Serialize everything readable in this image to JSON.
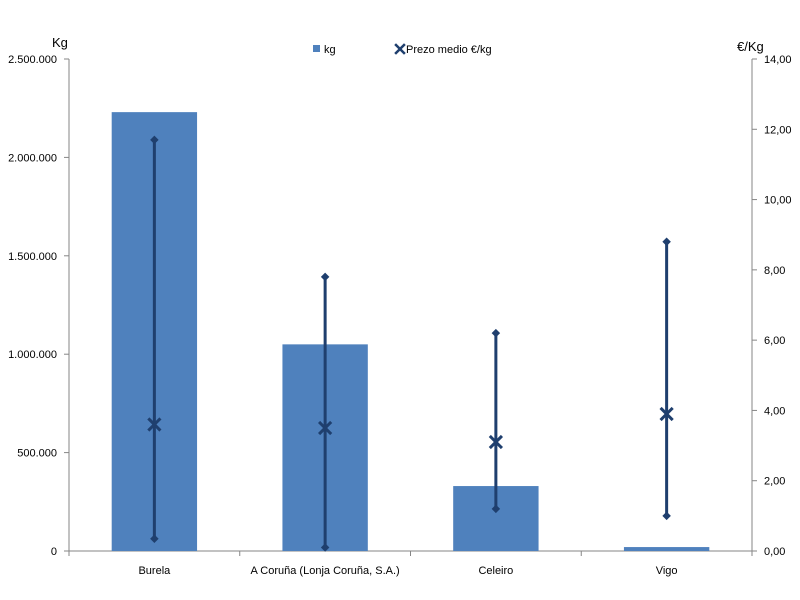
{
  "chart_data": {
    "type": "bar",
    "categories": [
      "Burela",
      "A Coruña (Lonja Coruña, S.A.)",
      "Celeiro",
      "Vigo"
    ],
    "y_left_label": "Kg",
    "y_right_label": "€/Kg",
    "y_left_ticks": [
      "0",
      "500.000",
      "1.000.000",
      "1.500.000",
      "2.000.000",
      "2.500.000"
    ],
    "y_right_ticks": [
      "0,00",
      "2,00",
      "4,00",
      "6,00",
      "8,00",
      "10,00",
      "12,00",
      "14,00"
    ],
    "ylim_left": [
      0,
      2500000
    ],
    "ylim_right": [
      0,
      14
    ],
    "legend": {
      "position": "top-center",
      "kg": "kg",
      "price": "Prezo medio €/kg"
    },
    "series": [
      {
        "name": "kg",
        "type": "bar",
        "axis": "left",
        "color": "#4F81BD",
        "values": [
          2230000,
          1050000,
          330000,
          20000
        ]
      },
      {
        "name": "Prezo medio €/kg",
        "type": "range-marker",
        "axis": "right",
        "color": "#1F3F6E",
        "mean": [
          3.6,
          3.5,
          3.1,
          3.9
        ],
        "min": [
          0.35,
          0.1,
          1.2,
          1.0
        ],
        "max": [
          11.7,
          7.8,
          6.2,
          8.8
        ]
      }
    ],
    "grid": false
  }
}
